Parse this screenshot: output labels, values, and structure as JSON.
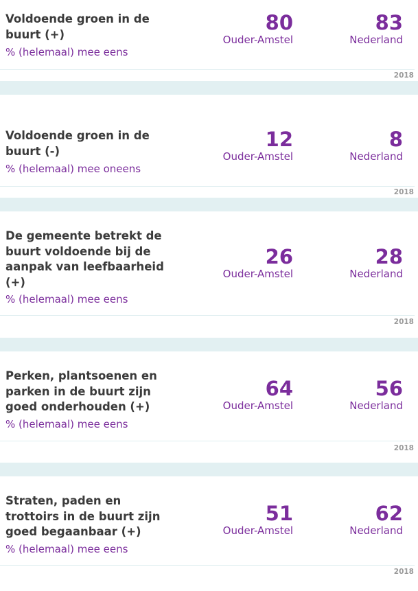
{
  "items": [
    {
      "title": "Voldoende groen in de buurt (+)",
      "subtitle": "% (helemaal) mee eens",
      "local_value": "80",
      "local_label": "Ouder-Amstel",
      "national_value": "83",
      "national_label": "Nederland",
      "year": "2018"
    },
    {
      "title": "Voldoende groen in de buurt (-)",
      "subtitle": "% (helemaal) mee oneens",
      "local_value": "12",
      "local_label": "Ouder-Amstel",
      "national_value": "8",
      "national_label": "Nederland",
      "year": "2018"
    },
    {
      "title": "De gemeente betrekt de buurt voldoende bij de aanpak van leefbaarheid (+)",
      "subtitle": "% (helemaal) mee eens",
      "local_value": "26",
      "local_label": "Ouder-Amstel",
      "national_value": "28",
      "national_label": "Nederland",
      "year": "2018"
    },
    {
      "title": "Perken, plantsoenen en parken in de buurt zijn goed onderhouden (+)",
      "subtitle": "% (helemaal) mee eens",
      "local_value": "64",
      "local_label": "Ouder-Amstel",
      "national_value": "56",
      "national_label": "Nederland",
      "year": "2018"
    },
    {
      "title": "Straten, paden en trottoirs in de buurt zijn goed begaanbaar (+)",
      "subtitle": "% (helemaal) mee eens",
      "local_value": "51",
      "local_label": "Ouder-Amstel",
      "national_value": "62",
      "national_label": "Nederland",
      "year": "2018"
    }
  ]
}
